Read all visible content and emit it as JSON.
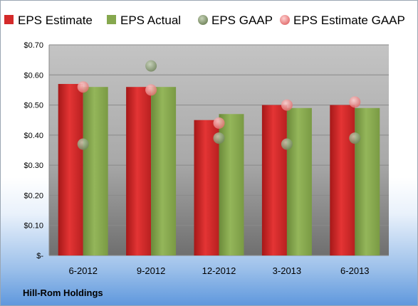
{
  "chart_data": {
    "type": "bar",
    "title": "",
    "xlabel": "",
    "ylabel": "",
    "categories": [
      "6-2012",
      "9-2012",
      "12-2012",
      "3-2013",
      "6-2013"
    ],
    "series": [
      {
        "name": "EPS Estimate",
        "kind": "bar",
        "color": "#d42a2a",
        "values": [
          0.57,
          0.56,
          0.45,
          0.5,
          0.5
        ]
      },
      {
        "name": "EPS Actual",
        "kind": "bar",
        "color": "#86a84e",
        "values": [
          0.56,
          0.56,
          0.47,
          0.49,
          0.49
        ]
      },
      {
        "name": "EPS GAAP",
        "kind": "scatter",
        "color": "#8ea07a",
        "values": [
          0.37,
          0.63,
          0.39,
          0.37,
          0.39
        ]
      },
      {
        "name": "EPS Estimate GAAP",
        "kind": "scatter",
        "color": "#ee8a8a",
        "values": [
          0.56,
          0.55,
          0.44,
          0.5,
          0.51
        ]
      }
    ],
    "yticks": [
      0.0,
      0.1,
      0.2,
      0.3,
      0.4,
      0.5,
      0.6,
      0.7
    ],
    "ytick_labels": [
      "$-",
      "$0.10",
      "$0.20",
      "$0.30",
      "$0.40",
      "$0.50",
      "$0.60",
      "$0.70"
    ],
    "ylim": [
      0,
      0.7
    ],
    "grid": true,
    "legend_position": "top",
    "footer_label": "Hill-Rom Holdings"
  }
}
